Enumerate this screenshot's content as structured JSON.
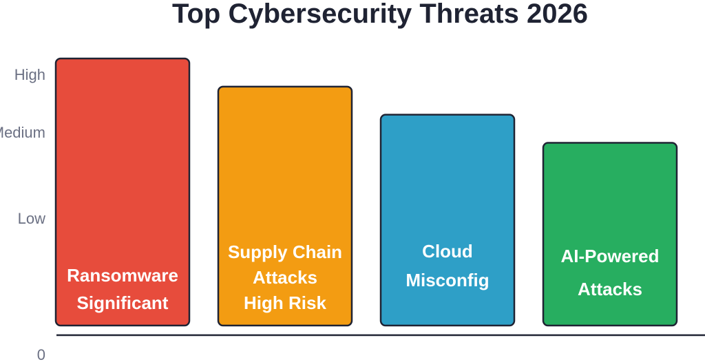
{
  "chart_data": {
    "type": "bar",
    "title": "Top Cybersecurity Threats 2026",
    "xlabel": "",
    "ylabel": "",
    "ylim": [
      0,
      9.5
    ],
    "grid": false,
    "y_ticks": [
      {
        "label": "0",
        "value": 0
      },
      {
        "label": "Low",
        "value": 4
      },
      {
        "label": "Medium",
        "value": 7
      },
      {
        "label": "High",
        "value": 9
      }
    ],
    "categories": [
      [
        "Ransomware",
        "Significant"
      ],
      [
        "Supply Chain",
        "Attacks",
        "High Risk"
      ],
      [
        "Cloud",
        "Misconfig"
      ],
      [
        "AI-Powered",
        "Attacks"
      ]
    ],
    "values": [
      9.5,
      8.5,
      7.5,
      6.5
    ],
    "colors": [
      "#e74c3c",
      "#f39c12",
      "#2e9fc7",
      "#27ae60"
    ]
  }
}
